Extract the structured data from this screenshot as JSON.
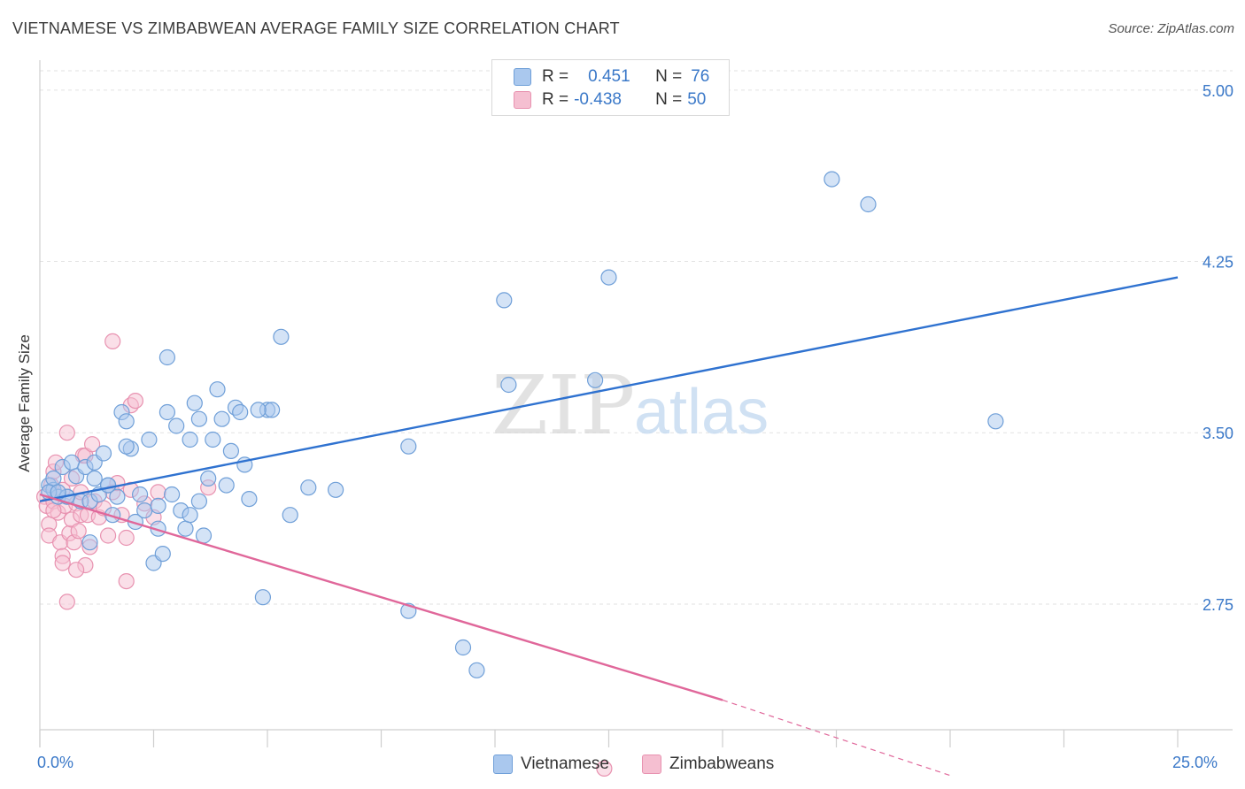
{
  "header": {
    "title": "VIETNAMESE VS ZIMBABWEAN AVERAGE FAMILY SIZE CORRELATION CHART",
    "source": "Source: ZipAtlas.com"
  },
  "legend": {
    "rows": [
      {
        "r_label": "R =",
        "r_value": "0.451",
        "n_label": "N =",
        "n_value": "76"
      },
      {
        "r_label": "R =",
        "r_value": "-0.438",
        "n_label": "N =",
        "n_value": "50"
      }
    ]
  },
  "watermark": {
    "zip": "ZIP",
    "atlas": "atlas"
  },
  "colors": {
    "blue_fill": "#aac8ee",
    "blue_stroke": "#6f9fd8",
    "blue_line": "#2f72d0",
    "pink_fill": "#f5bfd1",
    "pink_stroke": "#e892b0",
    "pink_line": "#e0679a",
    "tick_label": "#3a78c8",
    "grid": "#e2e2e2"
  },
  "chart_data": {
    "type": "scatter",
    "title": "VIETNAMESE VS ZIMBABWEAN AVERAGE FAMILY SIZE CORRELATION CHART",
    "xlabel": "",
    "ylabel": "Average Family Size",
    "xlim": [
      0,
      25
    ],
    "ylim": [
      2.2,
      5.1
    ],
    "x_tick_labels": [
      "0.0%",
      "25.0%"
    ],
    "y_ticks": [
      2.75,
      3.5,
      4.25,
      5.0
    ],
    "y_tick_labels": [
      "2.75",
      "3.50",
      "4.25",
      "5.00"
    ],
    "series": [
      {
        "name": "Vietnamese",
        "color": "blue",
        "trend": {
          "x": [
            0.0,
            25.0
          ],
          "y": [
            3.2,
            4.18
          ]
        },
        "points": [
          [
            0.2,
            3.27
          ],
          [
            0.3,
            3.25
          ],
          [
            0.4,
            3.22
          ],
          [
            0.5,
            3.35
          ],
          [
            0.6,
            3.22
          ],
          [
            0.7,
            3.37
          ],
          [
            0.8,
            3.31
          ],
          [
            0.9,
            3.2
          ],
          [
            1.0,
            3.35
          ],
          [
            1.1,
            3.2
          ],
          [
            1.2,
            3.37
          ],
          [
            1.3,
            3.23
          ],
          [
            1.4,
            3.41
          ],
          [
            1.5,
            3.27
          ],
          [
            1.6,
            3.14
          ],
          [
            1.7,
            3.22
          ],
          [
            1.8,
            3.59
          ],
          [
            1.9,
            3.55
          ],
          [
            2.0,
            3.43
          ],
          [
            2.1,
            3.11
          ],
          [
            2.2,
            3.23
          ],
          [
            2.3,
            3.16
          ],
          [
            2.4,
            3.47
          ],
          [
            2.5,
            2.93
          ],
          [
            2.6,
            3.08
          ],
          [
            2.7,
            2.97
          ],
          [
            2.8,
            3.59
          ],
          [
            2.9,
            3.23
          ],
          [
            3.0,
            3.53
          ],
          [
            3.1,
            3.16
          ],
          [
            3.2,
            3.08
          ],
          [
            3.3,
            3.47
          ],
          [
            3.4,
            3.63
          ],
          [
            3.5,
            3.56
          ],
          [
            3.5,
            3.2
          ],
          [
            3.6,
            3.05
          ],
          [
            3.7,
            3.3
          ],
          [
            3.8,
            3.47
          ],
          [
            3.9,
            3.69
          ],
          [
            4.0,
            3.56
          ],
          [
            4.2,
            3.42
          ],
          [
            4.3,
            3.61
          ],
          [
            4.4,
            3.59
          ],
          [
            4.5,
            3.36
          ],
          [
            4.6,
            3.21
          ],
          [
            5.0,
            3.6
          ],
          [
            5.1,
            3.6
          ],
          [
            5.3,
            3.92
          ],
          [
            5.5,
            3.14
          ],
          [
            0.3,
            3.3
          ],
          [
            0.6,
            3.22
          ],
          [
            1.5,
            3.27
          ],
          [
            2.8,
            3.83
          ],
          [
            4.1,
            3.27
          ],
          [
            0.2,
            3.24
          ],
          [
            1.1,
            3.02
          ],
          [
            1.9,
            3.44
          ],
          [
            2.6,
            3.18
          ],
          [
            3.3,
            3.14
          ],
          [
            4.8,
            3.6
          ],
          [
            0.4,
            3.24
          ],
          [
            1.2,
            3.3
          ],
          [
            8.1,
            3.44
          ],
          [
            10.2,
            4.08
          ],
          [
            10.3,
            3.71
          ],
          [
            12.5,
            4.18
          ],
          [
            12.2,
            3.73
          ],
          [
            17.4,
            4.61
          ],
          [
            18.2,
            4.5
          ],
          [
            21.0,
            3.55
          ],
          [
            8.1,
            2.72
          ],
          [
            9.3,
            2.56
          ],
          [
            9.6,
            2.46
          ],
          [
            5.9,
            3.26
          ],
          [
            6.5,
            3.25
          ],
          [
            4.9,
            2.78
          ]
        ]
      },
      {
        "name": "Zimbabweans",
        "color": "pink",
        "trend": {
          "x": [
            0.0,
            15.0
          ],
          "y": [
            3.23,
            2.33
          ]
        },
        "trend_dashed": {
          "x": [
            15.0,
            20.0
          ],
          "y": [
            2.33,
            2.0
          ]
        },
        "points": [
          [
            0.1,
            3.22
          ],
          [
            0.15,
            3.18
          ],
          [
            0.2,
            3.1
          ],
          [
            0.2,
            3.05
          ],
          [
            0.25,
            3.27
          ],
          [
            0.3,
            3.2
          ],
          [
            0.3,
            3.33
          ],
          [
            0.35,
            3.37
          ],
          [
            0.4,
            3.15
          ],
          [
            0.45,
            3.02
          ],
          [
            0.5,
            3.25
          ],
          [
            0.5,
            2.96
          ],
          [
            0.55,
            3.18
          ],
          [
            0.6,
            3.5
          ],
          [
            0.65,
            3.06
          ],
          [
            0.7,
            3.3
          ],
          [
            0.7,
            3.12
          ],
          [
            0.75,
            3.02
          ],
          [
            0.8,
            3.19
          ],
          [
            0.85,
            3.07
          ],
          [
            0.9,
            3.14
          ],
          [
            0.95,
            3.4
          ],
          [
            1.0,
            3.4
          ],
          [
            1.05,
            3.14
          ],
          [
            1.1,
            3.0
          ],
          [
            1.15,
            3.45
          ],
          [
            1.2,
            3.2
          ],
          [
            1.3,
            3.13
          ],
          [
            1.4,
            3.17
          ],
          [
            1.5,
            3.05
          ],
          [
            1.6,
            3.24
          ],
          [
            1.7,
            3.28
          ],
          [
            1.8,
            3.14
          ],
          [
            1.9,
            3.04
          ],
          [
            2.0,
            3.62
          ],
          [
            2.1,
            3.64
          ],
          [
            2.3,
            3.19
          ],
          [
            2.5,
            3.13
          ],
          [
            0.6,
            2.76
          ],
          [
            1.0,
            2.92
          ],
          [
            1.9,
            2.85
          ],
          [
            0.5,
            2.93
          ],
          [
            0.8,
            2.9
          ],
          [
            0.3,
            3.16
          ],
          [
            2.0,
            3.25
          ],
          [
            2.6,
            3.24
          ],
          [
            3.7,
            3.26
          ],
          [
            0.9,
            3.24
          ],
          [
            1.6,
            3.9
          ],
          [
            12.4,
            2.03
          ]
        ]
      }
    ]
  }
}
